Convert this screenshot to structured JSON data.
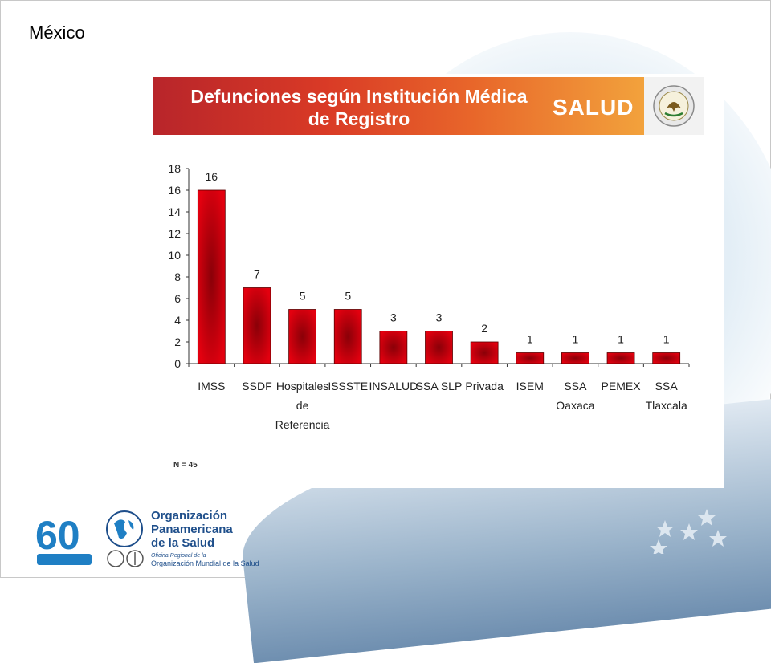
{
  "slide": {
    "title": "México"
  },
  "banner": {
    "title_line1": "Defunciones según Institución Médica",
    "title_line2": "de Registro",
    "brand": "SALUD"
  },
  "chart_data": {
    "type": "bar",
    "categories": [
      [
        "IMSS"
      ],
      [
        "SSDF"
      ],
      [
        "Hospitales",
        "de",
        "Referencia"
      ],
      [
        "ISSSTE"
      ],
      [
        "INSALUD"
      ],
      [
        "SSA SLP"
      ],
      [
        "Privada"
      ],
      [
        "ISEM"
      ],
      [
        "SSA",
        "Oaxaca"
      ],
      [
        "PEMEX"
      ],
      [
        "SSA",
        "Tlaxcala"
      ]
    ],
    "values": [
      16,
      7,
      5,
      5,
      3,
      3,
      2,
      1,
      1,
      1,
      1
    ],
    "ylim": [
      0,
      18
    ],
    "yticks": [
      0,
      2,
      4,
      6,
      8,
      10,
      12,
      14,
      16,
      18
    ],
    "bar_color": "#e3000f",
    "bar_dark": "#8a0008",
    "grid": false,
    "legend": "none"
  },
  "footnote": "N = 45",
  "footer": {
    "logo_number": "60",
    "org_line1": "Organización",
    "org_line2": "Panamericana",
    "org_line3": "de la Salud",
    "office_label": "Oficina Regional de la",
    "who_name": "Organización Mundial de la Salud"
  }
}
